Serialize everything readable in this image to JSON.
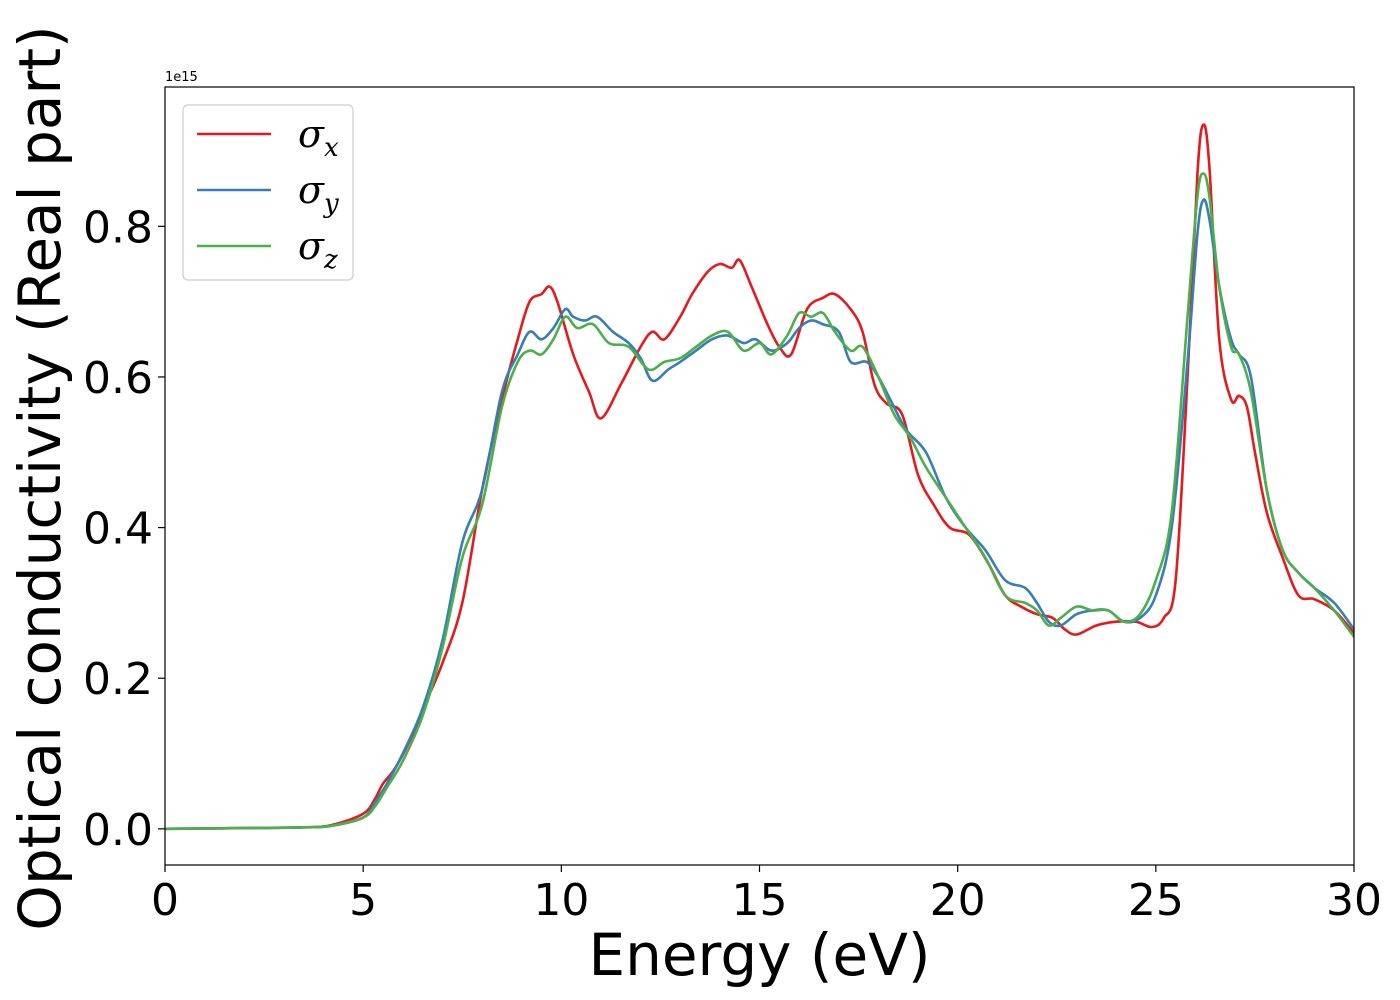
{
  "chart_data": {
    "type": "line",
    "xlabel": "Energy (eV)",
    "ylabel": "Optical conductivity (Real part)",
    "y_offset_text": "1e15",
    "xlim": [
      0,
      30
    ],
    "ylim": [
      -0.048,
      0.985
    ],
    "x_ticks": [
      0,
      5,
      10,
      15,
      20,
      25,
      30
    ],
    "x_tick_labels": [
      "0",
      "5",
      "10",
      "15",
      "20",
      "25",
      "30"
    ],
    "y_ticks": [
      0.0,
      0.2,
      0.4,
      0.6,
      0.8
    ],
    "y_tick_labels": [
      "0.0",
      "0.2",
      "0.4",
      "0.6",
      "0.8"
    ],
    "grid": false,
    "legend_position": "top-left",
    "series": [
      {
        "name": "σx",
        "symbol": "σ",
        "subscript": "x",
        "color": "#e41a1c",
        "x": [
          0,
          2,
          3.5,
          4.2,
          5,
          5.3,
          5.5,
          5.8,
          6.2,
          6.6,
          7,
          7.5,
          8,
          8.5,
          8.9,
          9.2,
          9.5,
          9.7,
          9.9,
          10.3,
          10.7,
          11,
          11.5,
          12,
          12.3,
          12.6,
          13,
          13.3,
          13.7,
          14,
          14.3,
          14.5,
          14.8,
          15.2,
          15.5,
          15.8,
          16.2,
          16.6,
          16.9,
          17.3,
          17.6,
          17.9,
          18.2,
          18.6,
          19,
          19.4,
          19.8,
          20.3,
          20.8,
          21.2,
          21.6,
          22,
          22.4,
          22.7,
          23,
          23.5,
          24,
          24.5,
          24.9,
          25.2,
          25.5,
          25.8,
          26.05,
          26.2,
          26.35,
          26.6,
          26.9,
          27.1,
          27.3,
          27.5,
          27.8,
          28.2,
          28.6,
          29,
          29.5,
          30
        ],
        "y": [
          0,
          0.001,
          0.002,
          0.005,
          0.02,
          0.04,
          0.06,
          0.08,
          0.12,
          0.17,
          0.22,
          0.3,
          0.45,
          0.57,
          0.65,
          0.7,
          0.71,
          0.72,
          0.7,
          0.63,
          0.58,
          0.545,
          0.59,
          0.64,
          0.66,
          0.65,
          0.68,
          0.71,
          0.74,
          0.75,
          0.745,
          0.755,
          0.72,
          0.67,
          0.64,
          0.63,
          0.69,
          0.705,
          0.71,
          0.69,
          0.66,
          0.59,
          0.565,
          0.55,
          0.47,
          0.43,
          0.4,
          0.39,
          0.35,
          0.31,
          0.295,
          0.285,
          0.28,
          0.265,
          0.258,
          0.27,
          0.275,
          0.275,
          0.268,
          0.28,
          0.33,
          0.6,
          0.87,
          0.935,
          0.88,
          0.65,
          0.57,
          0.575,
          0.56,
          0.5,
          0.42,
          0.36,
          0.31,
          0.305,
          0.29,
          0.26
        ]
      },
      {
        "name": "σy",
        "symbol": "σ",
        "subscript": "y",
        "color": "#377eb8",
        "x": [
          0,
          2,
          3.5,
          4.2,
          5,
          5.3,
          5.6,
          6,
          6.5,
          7,
          7.5,
          8,
          8.5,
          8.9,
          9.2,
          9.5,
          9.8,
          10.1,
          10.3,
          10.6,
          10.9,
          11.3,
          11.7,
          12,
          12.3,
          12.7,
          13,
          13.4,
          13.8,
          14.2,
          14.6,
          14.9,
          15.3,
          15.7,
          16,
          16.3,
          16.6,
          17,
          17.3,
          17.7,
          18,
          18.3,
          18.7,
          19.2,
          19.7,
          20.2,
          20.7,
          21.2,
          21.7,
          22,
          22.3,
          22.6,
          23,
          23.4,
          23.8,
          24.2,
          24.6,
          25,
          25.4,
          25.8,
          26.05,
          26.2,
          26.35,
          26.6,
          26.9,
          27.1,
          27.4,
          27.8,
          28.2,
          28.6,
          29,
          29.5,
          30
        ],
        "y": [
          0,
          0.001,
          0.002,
          0.004,
          0.015,
          0.035,
          0.06,
          0.1,
          0.16,
          0.25,
          0.38,
          0.45,
          0.58,
          0.63,
          0.66,
          0.65,
          0.665,
          0.69,
          0.68,
          0.675,
          0.68,
          0.66,
          0.645,
          0.625,
          0.595,
          0.61,
          0.62,
          0.635,
          0.65,
          0.655,
          0.645,
          0.65,
          0.635,
          0.645,
          0.665,
          0.675,
          0.67,
          0.66,
          0.62,
          0.62,
          0.6,
          0.57,
          0.53,
          0.5,
          0.44,
          0.4,
          0.37,
          0.33,
          0.32,
          0.3,
          0.275,
          0.27,
          0.285,
          0.29,
          0.29,
          0.275,
          0.28,
          0.31,
          0.4,
          0.62,
          0.79,
          0.835,
          0.81,
          0.72,
          0.65,
          0.63,
          0.6,
          0.45,
          0.37,
          0.34,
          0.32,
          0.3,
          0.265
        ]
      },
      {
        "name": "σz",
        "symbol": "σ",
        "subscript": "z",
        "color": "#4daf4a",
        "x": [
          0,
          2,
          3.5,
          4.2,
          5,
          5.3,
          5.6,
          6,
          6.5,
          7,
          7.5,
          8,
          8.5,
          8.9,
          9.2,
          9.5,
          9.8,
          10.1,
          10.4,
          10.8,
          11.2,
          11.7,
          12.2,
          12.6,
          13,
          13.4,
          13.8,
          14.2,
          14.6,
          15,
          15.3,
          15.7,
          16,
          16.3,
          16.6,
          16.9,
          17.3,
          17.6,
          18,
          18.4,
          18.8,
          19.2,
          19.7,
          20.2,
          20.7,
          21.2,
          21.7,
          22,
          22.3,
          22.6,
          23,
          23.4,
          23.8,
          24.2,
          24.6,
          25,
          25.4,
          25.8,
          26.05,
          26.2,
          26.35,
          26.6,
          26.9,
          27.1,
          27.4,
          27.8,
          28.2,
          28.6,
          29,
          29.5,
          30
        ],
        "y": [
          0,
          0.001,
          0.002,
          0.004,
          0.015,
          0.03,
          0.055,
          0.09,
          0.15,
          0.24,
          0.36,
          0.43,
          0.56,
          0.62,
          0.635,
          0.63,
          0.65,
          0.68,
          0.665,
          0.67,
          0.645,
          0.64,
          0.61,
          0.62,
          0.625,
          0.64,
          0.655,
          0.66,
          0.635,
          0.645,
          0.63,
          0.655,
          0.685,
          0.68,
          0.685,
          0.66,
          0.635,
          0.64,
          0.6,
          0.55,
          0.52,
          0.48,
          0.44,
          0.4,
          0.36,
          0.31,
          0.3,
          0.29,
          0.27,
          0.28,
          0.295,
          0.29,
          0.29,
          0.275,
          0.285,
          0.33,
          0.42,
          0.68,
          0.84,
          0.87,
          0.84,
          0.72,
          0.64,
          0.63,
          0.58,
          0.45,
          0.37,
          0.34,
          0.32,
          0.29,
          0.255
        ]
      }
    ]
  }
}
